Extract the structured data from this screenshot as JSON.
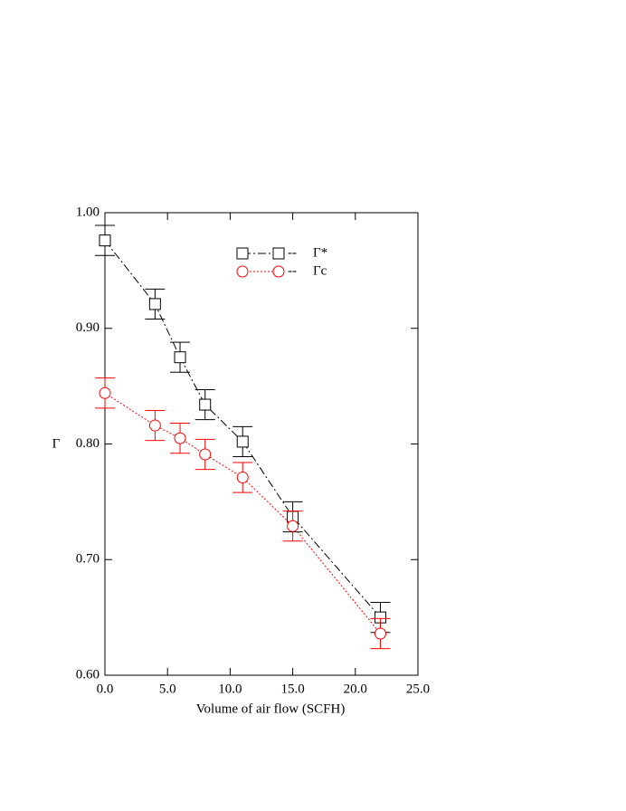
{
  "chart_data": {
    "type": "line",
    "x_label": "Volume of air flow (SCFH)",
    "y_label": "Γ",
    "xlim": [
      0,
      25
    ],
    "ylim": [
      0.6,
      1.0
    ],
    "xticks": [
      {
        "value": 0,
        "label": "0.0"
      },
      {
        "value": 5,
        "label": "5.0"
      },
      {
        "value": 10,
        "label": "10.0"
      },
      {
        "value": 15,
        "label": "15.0"
      },
      {
        "value": 20,
        "label": "20.0"
      },
      {
        "value": 25,
        "label": "25.0"
      }
    ],
    "yticks": [
      {
        "value": 0.6,
        "label": "0.60"
      },
      {
        "value": 0.7,
        "label": "0.70"
      },
      {
        "value": 0.8,
        "label": "0.80"
      },
      {
        "value": 0.9,
        "label": "0.90"
      },
      {
        "value": 1.0,
        "label": "1.00"
      }
    ],
    "legend_separator": "--",
    "x": [
      0,
      4,
      6,
      8,
      11,
      15,
      22
    ],
    "series": [
      {
        "name": "Γ*",
        "color": "#000000",
        "marker": "square",
        "dash": "9,3,2,3",
        "values": [
          0.976,
          0.921,
          0.875,
          0.834,
          0.802,
          0.737,
          0.65
        ],
        "errors": [
          0.013,
          0.013,
          0.013,
          0.013,
          0.013,
          0.013,
          0.013
        ]
      },
      {
        "name": "Γc",
        "color": "#ff0000",
        "marker": "circle",
        "dash": "2,2",
        "values": [
          0.844,
          0.816,
          0.805,
          0.791,
          0.771,
          0.729,
          0.636
        ],
        "errors": [
          0.013,
          0.013,
          0.013,
          0.013,
          0.013,
          0.013,
          0.013
        ]
      }
    ]
  }
}
